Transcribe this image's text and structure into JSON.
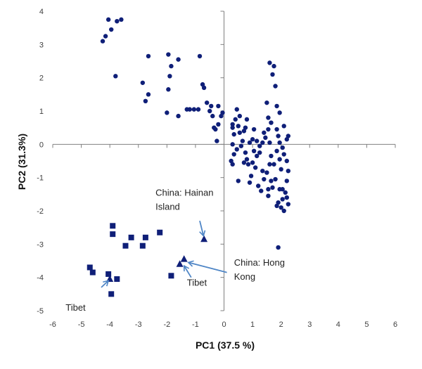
{
  "chart_data": {
    "type": "scatter",
    "xlabel": "PC1 (37.5 %)",
    "ylabel": "PC2 (31.3%)",
    "xlim": [
      -6,
      6
    ],
    "ylim": [
      -5,
      4
    ],
    "x_ticks": [
      -6,
      -5,
      -4,
      -3,
      -2,
      -1,
      0,
      1,
      2,
      3,
      4,
      5,
      6
    ],
    "y_ticks": [
      -5,
      -4,
      -3,
      -2,
      -1,
      0,
      1,
      2,
      3,
      4
    ],
    "grid": false,
    "marker_color": "#0f1f78",
    "arrow_color": "#4f86c6",
    "series": [
      {
        "marker": "circle",
        "points": [
          [
            -4.25,
            3.1
          ],
          [
            -4.15,
            3.25
          ],
          [
            -4.05,
            3.75
          ],
          [
            -3.95,
            3.45
          ],
          [
            -3.75,
            3.7
          ],
          [
            -3.6,
            3.75
          ],
          [
            -3.8,
            2.05
          ],
          [
            -2.65,
            2.65
          ],
          [
            -1.95,
            2.7
          ],
          [
            -1.85,
            2.35
          ],
          [
            -1.6,
            2.55
          ],
          [
            -0.85,
            2.65
          ],
          [
            -2.85,
            1.85
          ],
          [
            -2.65,
            1.5
          ],
          [
            -2.75,
            1.3
          ],
          [
            -1.95,
            1.65
          ],
          [
            -1.9,
            2.05
          ],
          [
            -2.0,
            0.95
          ],
          [
            -1.6,
            0.85
          ],
          [
            -1.3,
            1.05
          ],
          [
            -1.2,
            1.05
          ],
          [
            -1.05,
            1.05
          ],
          [
            -0.9,
            1.05
          ],
          [
            -0.75,
            1.8
          ],
          [
            -0.7,
            1.7
          ],
          [
            -0.6,
            1.25
          ],
          [
            -0.5,
            1.0
          ],
          [
            -0.45,
            1.15
          ],
          [
            -0.4,
            0.85
          ],
          [
            -0.35,
            0.5
          ],
          [
            -0.3,
            0.45
          ],
          [
            -0.1,
            0.85
          ],
          [
            -0.05,
            0.95
          ],
          [
            -0.2,
            1.15
          ],
          [
            -0.25,
            0.1
          ],
          [
            -0.2,
            0.6
          ],
          [
            0.3,
            0.6
          ],
          [
            0.3,
            0.5
          ],
          [
            0.4,
            0.75
          ],
          [
            0.35,
            0.3
          ],
          [
            0.3,
            0.0
          ],
          [
            0.35,
            -0.3
          ],
          [
            0.25,
            -0.5
          ],
          [
            0.3,
            -0.6
          ],
          [
            0.45,
            1.05
          ],
          [
            0.5,
            0.55
          ],
          [
            0.55,
            0.35
          ],
          [
            0.6,
            -0.05
          ],
          [
            0.65,
            0.1
          ],
          [
            0.7,
            0.4
          ],
          [
            0.75,
            -0.25
          ],
          [
            0.7,
            -0.55
          ],
          [
            0.8,
            0.75
          ],
          [
            0.9,
            0.05
          ],
          [
            1.0,
            0.15
          ],
          [
            1.05,
            -0.2
          ],
          [
            0.5,
            -1.1
          ],
          [
            0.85,
            -0.6
          ],
          [
            0.95,
            -0.95
          ],
          [
            0.9,
            -1.15
          ],
          [
            1.1,
            -0.7
          ],
          [
            1.15,
            -0.35
          ],
          [
            1.25,
            -0.05
          ],
          [
            1.2,
            -1.25
          ],
          [
            1.3,
            -1.4
          ],
          [
            1.35,
            -0.8
          ],
          [
            1.4,
            0.35
          ],
          [
            1.5,
            1.25
          ],
          [
            1.55,
            0.8
          ],
          [
            1.6,
            0.05
          ],
          [
            1.65,
            -0.35
          ],
          [
            1.6,
            -0.6
          ],
          [
            1.65,
            -1.1
          ],
          [
            1.7,
            -1.3
          ],
          [
            1.55,
            -1.55
          ],
          [
            1.75,
            2.35
          ],
          [
            1.8,
            1.75
          ],
          [
            1.85,
            1.15
          ],
          [
            1.9,
            0.25
          ],
          [
            1.95,
            0.05
          ],
          [
            1.85,
            -0.2
          ],
          [
            1.95,
            -0.45
          ],
          [
            2.0,
            -0.75
          ],
          [
            1.95,
            -1.35
          ],
          [
            1.9,
            -1.75
          ],
          [
            1.85,
            -1.85
          ],
          [
            2.0,
            -1.9
          ],
          [
            2.05,
            -1.65
          ],
          [
            2.1,
            -2.0
          ],
          [
            2.15,
            -1.45
          ],
          [
            2.2,
            -1.6
          ],
          [
            2.25,
            -1.8
          ],
          [
            2.2,
            -1.1
          ],
          [
            2.25,
            -0.8
          ],
          [
            2.2,
            -0.5
          ],
          [
            2.25,
            0.25
          ],
          [
            2.2,
            0.15
          ],
          [
            2.1,
            0.55
          ],
          [
            1.95,
            0.95
          ],
          [
            1.9,
            -3.1
          ],
          [
            2.05,
            -0.1
          ],
          [
            1.7,
            2.1
          ],
          [
            1.6,
            2.45
          ],
          [
            1.55,
            0.45
          ],
          [
            1.45,
            0.2
          ],
          [
            1.35,
            0.05
          ],
          [
            1.25,
            -0.25
          ],
          [
            1.15,
            0.1
          ],
          [
            1.05,
            0.45
          ],
          [
            0.55,
            0.85
          ],
          [
            0.75,
            0.5
          ],
          [
            0.8,
            -0.45
          ],
          [
            1.0,
            -0.55
          ],
          [
            1.5,
            -0.85
          ],
          [
            1.8,
            -1.05
          ],
          [
            2.05,
            -1.35
          ],
          [
            1.65,
            0.65
          ],
          [
            1.85,
            0.45
          ],
          [
            1.75,
            -0.6
          ],
          [
            2.1,
            -0.3
          ],
          [
            0.45,
            -0.15
          ],
          [
            1.4,
            -1.05
          ],
          [
            1.55,
            -1.35
          ]
        ]
      },
      {
        "marker": "square",
        "points": [
          [
            -3.9,
            -2.45
          ],
          [
            -3.9,
            -2.7
          ],
          [
            -3.25,
            -2.8
          ],
          [
            -2.75,
            -2.8
          ],
          [
            -2.25,
            -2.65
          ],
          [
            -3.45,
            -3.05
          ],
          [
            -2.85,
            -3.05
          ],
          [
            -4.7,
            -3.7
          ],
          [
            -4.6,
            -3.85
          ],
          [
            -4.05,
            -3.9
          ],
          [
            -3.75,
            -4.05
          ],
          [
            -3.95,
            -4.5
          ],
          [
            -1.85,
            -3.95
          ]
        ]
      },
      {
        "marker": "triangle",
        "points": [
          [
            -4.0,
            -4.05
          ],
          [
            -1.55,
            -3.6
          ],
          [
            -1.4,
            -3.45
          ],
          [
            -0.7,
            -2.85
          ]
        ]
      }
    ],
    "annotations": [
      {
        "lines": [
          "China: Hainan",
          "Island"
        ],
        "x": -2.4,
        "y": -1.55
      },
      {
        "lines": [
          "China: Hong",
          "Kong"
        ],
        "x": 0.35,
        "y": -3.65
      },
      {
        "lines": [
          "Tibet"
        ],
        "x": -1.3,
        "y": -4.25
      },
      {
        "lines": [
          "Tibet"
        ],
        "x": -5.55,
        "y": -5.0
      }
    ],
    "arrows": [
      {
        "from": [
          -0.85,
          -2.3
        ],
        "to": [
          -0.72,
          -2.75
        ]
      },
      {
        "from": [
          0.1,
          -3.85
        ],
        "to": [
          -1.25,
          -3.55
        ]
      },
      {
        "from": [
          -1.15,
          -4.0
        ],
        "to": [
          -1.4,
          -3.65
        ]
      },
      {
        "from": [
          -4.3,
          -4.3
        ],
        "to": [
          -4.05,
          -4.1
        ]
      }
    ]
  }
}
